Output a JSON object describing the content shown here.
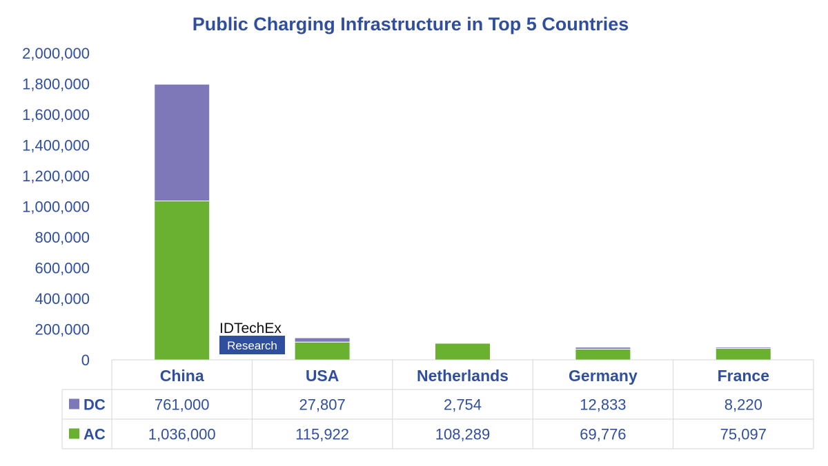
{
  "chart_data": {
    "type": "bar",
    "stacked": true,
    "title": "Public Charging Infrastructure in Top 5 Countries",
    "categories": [
      "China",
      "USA",
      "Netherlands",
      "Germany",
      "France"
    ],
    "series": [
      {
        "name": "AC",
        "color": "#6ab031",
        "values": [
          1036000,
          115922,
          108289,
          69776,
          75097
        ],
        "labels": [
          "1,036,000",
          "115,922",
          "108,289",
          "69,776",
          "75,097"
        ]
      },
      {
        "name": "DC",
        "color": "#7e78b8",
        "values": [
          761000,
          27807,
          2754,
          12833,
          8220
        ],
        "labels": [
          "761,000",
          "27,807",
          "2,754",
          "12,833",
          "8,220"
        ]
      }
    ],
    "table_row_order": [
      "DC",
      "AC"
    ],
    "ylim": [
      0,
      2000000
    ],
    "yticks": [
      0,
      200000,
      400000,
      600000,
      800000,
      1000000,
      1200000,
      1400000,
      1600000,
      1800000,
      2000000
    ],
    "ytick_labels": [
      "0",
      "200,000",
      "400,000",
      "600,000",
      "800,000",
      "1,000,000",
      "1,200,000",
      "1,400,000",
      "1,600,000",
      "1,800,000",
      "2,000,000"
    ],
    "legend": "data-table",
    "grid": false
  },
  "logo": {
    "name": "IDTechEx",
    "sub": "Research",
    "color": "#2f4f9e"
  },
  "colors": {
    "text": "#2f4f9e",
    "grid": "#d6d6d6"
  }
}
